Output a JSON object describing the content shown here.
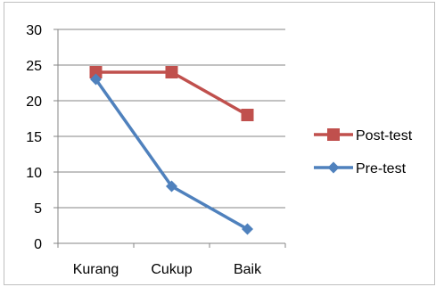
{
  "chart_data": {
    "type": "line",
    "title": "",
    "xlabel": "",
    "ylabel": "",
    "categories": [
      "Kurang",
      "Cukup",
      "Baik"
    ],
    "ylim": [
      0,
      30
    ],
    "yticks": [
      0,
      5,
      10,
      15,
      20,
      25,
      30
    ],
    "grid": true,
    "legend_position": "right",
    "series": [
      {
        "name": "Post-test",
        "values": [
          24,
          24,
          18
        ],
        "color": "#c0504d",
        "marker": "square"
      },
      {
        "name": "Pre-test",
        "values": [
          23,
          8,
          2
        ],
        "color": "#4f81bd",
        "marker": "diamond"
      }
    ]
  }
}
